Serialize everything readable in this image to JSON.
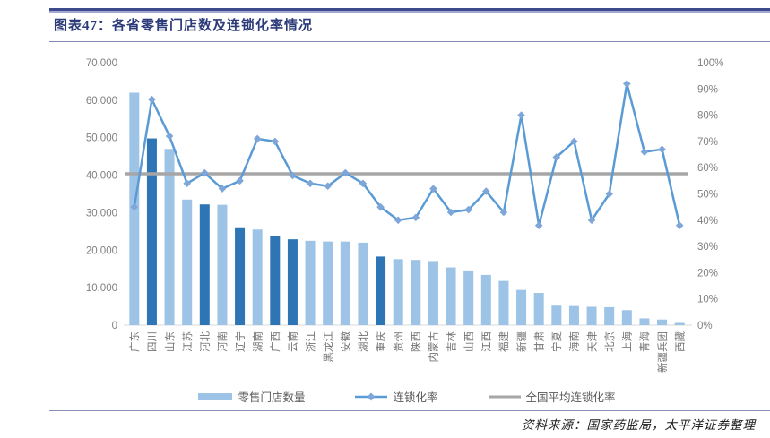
{
  "header": {
    "title": "图表47：各省零售门店数及连锁化率情况"
  },
  "footer": {
    "source": "资料来源：国家药监局，太平洋证券整理"
  },
  "chart_data": {
    "type": "bar+line",
    "title": "各省零售门店数及连锁化率情况",
    "categories": [
      "广东",
      "四川",
      "山东",
      "江苏",
      "河北",
      "河南",
      "辽宁",
      "湖南",
      "广西",
      "云南",
      "浙江",
      "黑龙江",
      "安徽",
      "湖北",
      "重庆",
      "贵州",
      "陕西",
      "内蒙古",
      "吉林",
      "山西",
      "江西",
      "福建",
      "新疆",
      "甘肃",
      "宁夏",
      "海南",
      "天津",
      "北京",
      "上海",
      "青海",
      "新疆兵团",
      "西藏"
    ],
    "series": [
      {
        "name": "零售门店数量",
        "type": "bar",
        "axis": "left",
        "values": [
          62000,
          49800,
          47000,
          33500,
          32200,
          32100,
          26100,
          25500,
          23700,
          22900,
          22500,
          22300,
          22300,
          22000,
          18300,
          17600,
          17400,
          17100,
          15400,
          14600,
          13400,
          11800,
          9400,
          8600,
          5200,
          5100,
          4900,
          4800,
          4000,
          1800,
          1500,
          600
        ]
      },
      {
        "name": "连锁化率",
        "type": "line",
        "axis": "right",
        "values": [
          45,
          86,
          72,
          54,
          58,
          52,
          55,
          71,
          70,
          57,
          54,
          53,
          58,
          54,
          45,
          40,
          41,
          52,
          43,
          44,
          51,
          43,
          80,
          38,
          64,
          70,
          40,
          50,
          92,
          66,
          67,
          38
        ]
      },
      {
        "name": "全国平均连锁化率",
        "type": "reference-line",
        "axis": "right",
        "value": 57.7
      }
    ],
    "dark_bar_categories": [
      "四川",
      "河北",
      "辽宁",
      "广西",
      "云南",
      "重庆"
    ],
    "left_axis": {
      "min": 0,
      "max": 70000,
      "step": 10000,
      "ticks": [
        "0",
        "10,000",
        "20,000",
        "30,000",
        "40,000",
        "50,000",
        "60,000",
        "70,000"
      ]
    },
    "right_axis": {
      "min": 0,
      "max": 100,
      "step": 10,
      "ticks": [
        "0%",
        "10%",
        "20%",
        "30%",
        "40%",
        "50%",
        "60%",
        "70%",
        "80%",
        "90%",
        "100%"
      ]
    },
    "grid": false,
    "legend_position": "bottom",
    "colors": {
      "bar_light": "#9DC3E6",
      "bar_dark": "#2E75B6",
      "line": "#5B9BD5",
      "marker": "#7EA6D9",
      "avg_line": "#A6A6A6",
      "axis_text": "#808080",
      "category_text": "#737373",
      "baseline": "#D9D9D9"
    }
  }
}
